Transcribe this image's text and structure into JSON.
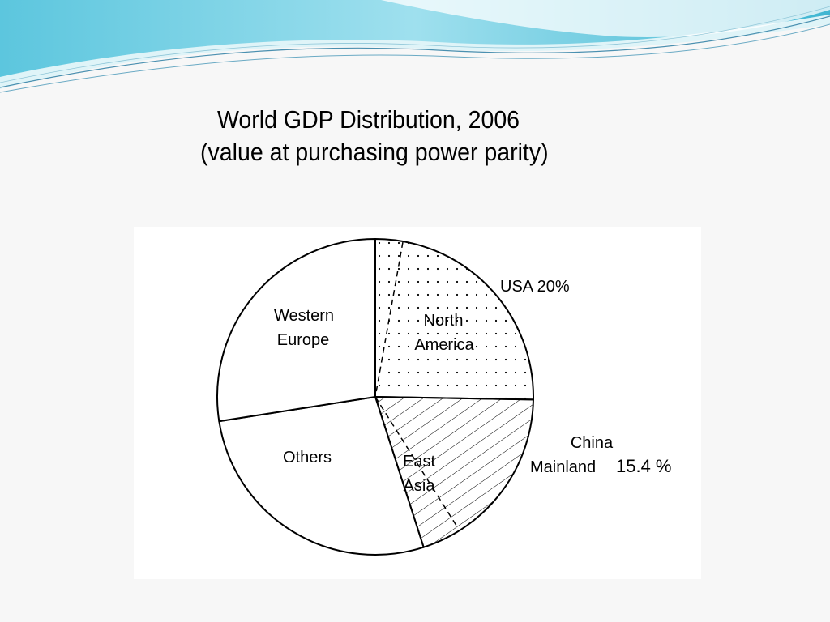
{
  "slide": {
    "title_line1": "World GDP Distribution, 2006",
    "title_line2": "(value at purchasing power parity)"
  },
  "colors": {
    "wave_light": "#bdeaf3",
    "wave_mid": "#7fd3e8",
    "wave_dark": "#3fb6d2",
    "wave_line": "#4a90b0",
    "pie_stroke": "#000000"
  },
  "chart_data": {
    "type": "pie",
    "title": "World GDP Distribution, 2006",
    "subtitle": "(value at purchasing power parity)",
    "slices": [
      {
        "label": "North America",
        "value": 23,
        "pattern": "dots"
      },
      {
        "label": "East Asia",
        "value": 18,
        "pattern": "hatch"
      },
      {
        "label": "Others",
        "value": 25,
        "pattern": "none"
      },
      {
        "label": "Western Europe",
        "value": 25,
        "pattern": "none"
      }
    ],
    "annotations": [
      {
        "text": "USA 20%",
        "refers_to": "North America"
      },
      {
        "text_line1": "China",
        "text_line2": "Mainland",
        "value_text": "15.4 %",
        "refers_to": "East Asia"
      }
    ]
  }
}
